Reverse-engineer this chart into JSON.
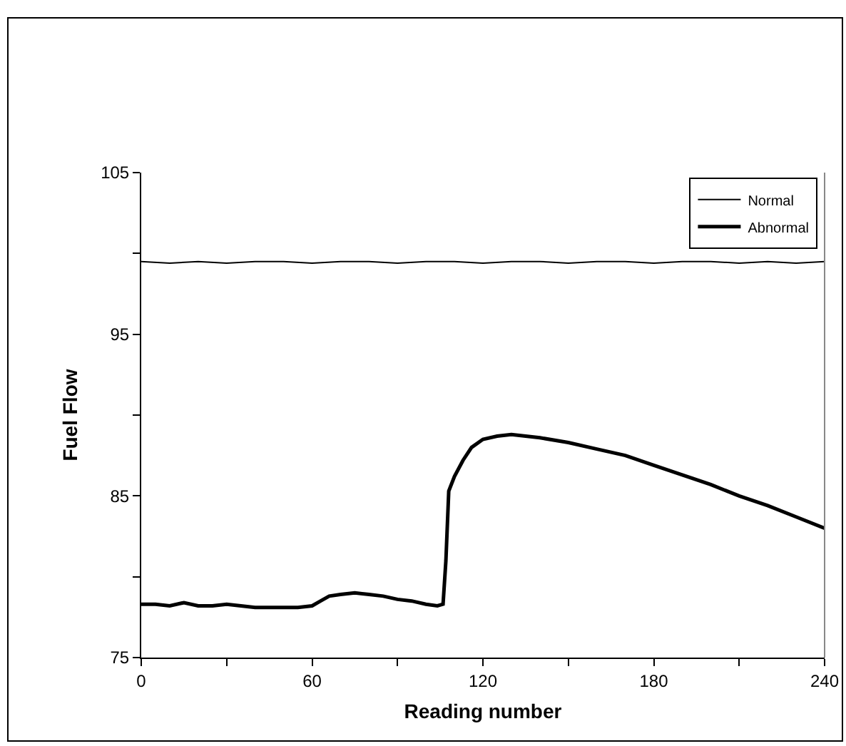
{
  "chart_data": {
    "type": "line",
    "xlabel": "Reading number",
    "ylabel": "Fuel Flow",
    "xlim": [
      0,
      240
    ],
    "xticks": [
      0,
      {
        "value": 30,
        "label": null
      },
      60,
      {
        "value": 90,
        "label": null
      },
      120,
      {
        "value": 150,
        "label": null
      },
      180,
      {
        "value": 210,
        "label": null
      },
      240
    ],
    "ylim": [
      75,
      105
    ],
    "yticks": [
      75,
      {
        "value": 80,
        "label": null
      },
      85,
      {
        "value": 90,
        "label": null
      },
      95,
      {
        "value": 100,
        "label": null
      },
      105
    ],
    "grid": false,
    "legend": "top right",
    "marker": "none",
    "series": [
      {
        "name": "Normal",
        "color": "#000000",
        "x": [
          0,
          10,
          20,
          30,
          40,
          50,
          60,
          70,
          80,
          90,
          100,
          110,
          120,
          130,
          140,
          150,
          160,
          170,
          180,
          190,
          200,
          210,
          220,
          230,
          240
        ],
        "values": [
          99.5,
          99.4,
          99.5,
          99.4,
          99.5,
          99.5,
          99.4,
          99.5,
          99.5,
          99.4,
          99.5,
          99.5,
          99.4,
          99.5,
          99.5,
          99.4,
          99.5,
          99.5,
          99.4,
          99.5,
          99.5,
          99.4,
          99.5,
          99.4,
          99.5
        ]
      },
      {
        "name": "Abnormal",
        "color": "#000000",
        "x": [
          0,
          5,
          10,
          15,
          20,
          25,
          30,
          35,
          40,
          45,
          50,
          55,
          60,
          63,
          66,
          70,
          75,
          80,
          85,
          90,
          95,
          100,
          104,
          106,
          107,
          108,
          110,
          113,
          116,
          120,
          125,
          130,
          135,
          140,
          150,
          160,
          170,
          180,
          190,
          200,
          210,
          220,
          230,
          240
        ],
        "values": [
          78.3,
          78.3,
          78.2,
          78.4,
          78.2,
          78.2,
          78.3,
          78.2,
          78.1,
          78.1,
          78.1,
          78.1,
          78.2,
          78.5,
          78.8,
          78.9,
          79.0,
          78.9,
          78.8,
          78.6,
          78.5,
          78.3,
          78.2,
          78.3,
          81.0,
          85.3,
          86.2,
          87.2,
          88.0,
          88.5,
          88.7,
          88.8,
          88.7,
          88.6,
          88.3,
          87.9,
          87.5,
          86.9,
          86.3,
          85.7,
          85.0,
          84.4,
          83.7,
          83.0
        ]
      }
    ]
  }
}
